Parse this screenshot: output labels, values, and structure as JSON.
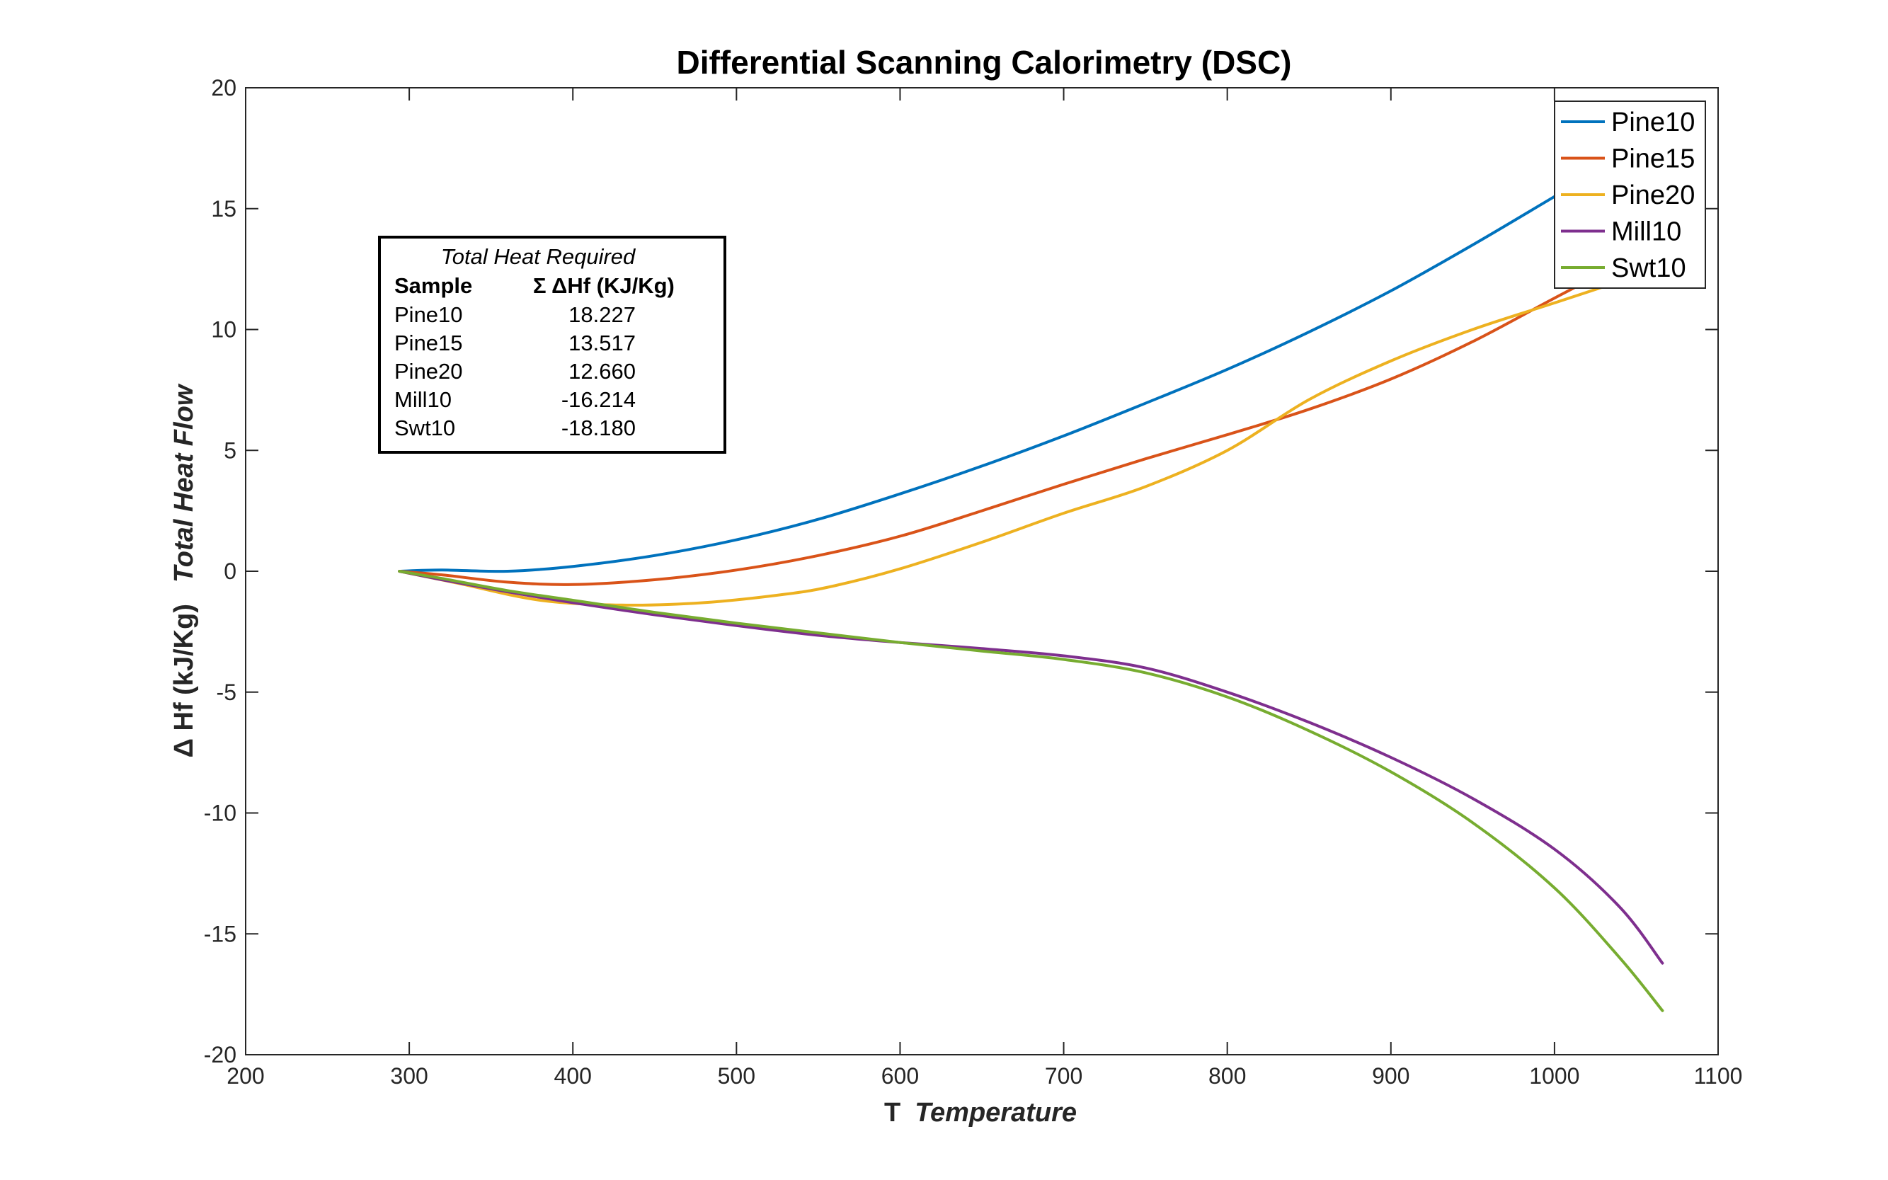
{
  "chart_data": {
    "type": "line",
    "title": "Differential Scanning Calorimetry (DSC)",
    "xlabel_main": "T",
    "xlabel_italic": "Temperature",
    "ylabel_main": "Δ Hf (kJ/Kg)",
    "ylabel_italic": "Total Heat Flow",
    "xlim": [
      200,
      1100
    ],
    "ylim": [
      -20,
      20
    ],
    "xticks": [
      200,
      300,
      400,
      500,
      600,
      700,
      800,
      900,
      1000,
      1100
    ],
    "yticks": [
      -20,
      -15,
      -10,
      -5,
      0,
      5,
      10,
      15,
      20
    ],
    "grid": false,
    "legend_position": "top-right",
    "series": [
      {
        "name": "Pine10",
        "color": "#0072BD",
        "x": [
          294,
          320,
          360,
          400,
          450,
          500,
          550,
          600,
          650,
          700,
          750,
          800,
          850,
          900,
          950,
          1000,
          1040,
          1066
        ],
        "y": [
          0,
          0.05,
          0.0,
          0.2,
          0.65,
          1.3,
          2.15,
          3.2,
          4.35,
          5.6,
          6.95,
          8.35,
          9.9,
          11.6,
          13.5,
          15.5,
          17.1,
          18.227
        ]
      },
      {
        "name": "Pine15",
        "color": "#D95319",
        "x": [
          294,
          320,
          360,
          400,
          450,
          500,
          550,
          600,
          650,
          700,
          750,
          800,
          850,
          900,
          950,
          1000,
          1040,
          1066
        ],
        "y": [
          0,
          -0.15,
          -0.45,
          -0.55,
          -0.35,
          0.05,
          0.65,
          1.45,
          2.5,
          3.6,
          4.65,
          5.65,
          6.7,
          7.95,
          9.5,
          11.3,
          12.7,
          13.517
        ]
      },
      {
        "name": "Pine20",
        "color": "#EDB120",
        "x": [
          294,
          330,
          380,
          430,
          480,
          530,
          560,
          600,
          650,
          700,
          750,
          800,
          850,
          900,
          950,
          1000,
          1040,
          1066
        ],
        "y": [
          0,
          -0.5,
          -1.2,
          -1.4,
          -1.3,
          -0.95,
          -0.6,
          0.1,
          1.2,
          2.4,
          3.5,
          5.0,
          7.1,
          8.7,
          10.0,
          11.1,
          12.0,
          12.66
        ]
      },
      {
        "name": "Mill10",
        "color": "#7E2F8E",
        "x": [
          294,
          320,
          360,
          400,
          450,
          500,
          550,
          600,
          650,
          700,
          750,
          800,
          850,
          900,
          950,
          1000,
          1040,
          1066
        ],
        "y": [
          0,
          -0.35,
          -0.85,
          -1.3,
          -1.8,
          -2.25,
          -2.65,
          -2.95,
          -3.2,
          -3.5,
          -4.0,
          -5.0,
          -6.25,
          -7.7,
          -9.4,
          -11.5,
          -13.9,
          -16.214
        ]
      },
      {
        "name": "Swt10",
        "color": "#77AC30",
        "x": [
          294,
          320,
          360,
          400,
          450,
          500,
          550,
          600,
          650,
          700,
          750,
          800,
          850,
          900,
          950,
          1000,
          1040,
          1066
        ],
        "y": [
          0,
          -0.3,
          -0.8,
          -1.2,
          -1.7,
          -2.15,
          -2.55,
          -2.95,
          -3.3,
          -3.65,
          -4.2,
          -5.2,
          -6.6,
          -8.3,
          -10.4,
          -13.1,
          -16.0,
          -18.18
        ]
      }
    ],
    "annotation_table": {
      "title": "Total Heat Required",
      "header_sample": "Sample",
      "header_value": "Σ ΔHf (KJ/Kg)",
      "rows": [
        {
          "sample": "Pine10",
          "value": "18.227"
        },
        {
          "sample": "Pine15",
          "value": "13.517"
        },
        {
          "sample": "Pine20",
          "value": "12.660"
        },
        {
          "sample": "Mill10",
          "value": "-16.214"
        },
        {
          "sample": "Swt10",
          "value": "-18.180"
        }
      ]
    }
  }
}
